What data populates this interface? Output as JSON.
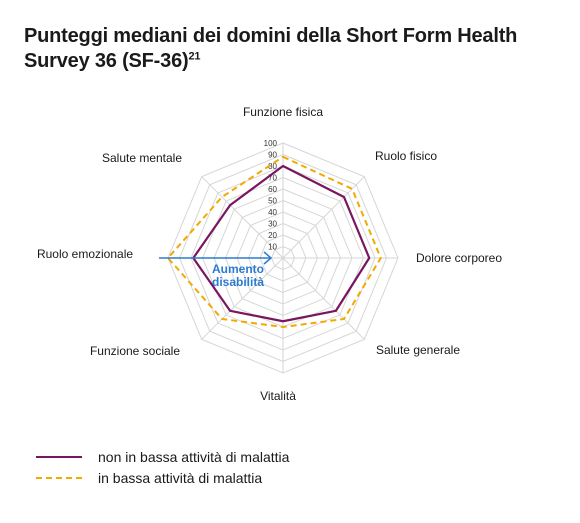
{
  "title": {
    "text": "Punteggi mediani dei domini della Short Form Health Survey 36 (SF-36)",
    "superscript": "21"
  },
  "chart_data": {
    "type": "radar",
    "axes": [
      "Funzione fisica",
      "Ruolo fisico",
      "Dolore corporeo",
      "Salute generale",
      "Vitalità",
      "Funzione sociale",
      "Ruolo emozionale",
      "Salute mentale"
    ],
    "scale": {
      "min": 0,
      "max": 100,
      "ticks": [
        "10",
        "20",
        "30",
        "40",
        "50",
        "60",
        "70",
        "80",
        "90",
        "100"
      ]
    },
    "annotation": {
      "line1": "Aumento",
      "line2": "disabilità",
      "color": "#2b7bd1"
    },
    "series": [
      {
        "name": "non in bassa attività di malattia",
        "values": [
          80,
          75,
          75,
          65,
          55,
          65,
          78,
          65
        ],
        "color": "#7a1560",
        "style": "solid"
      },
      {
        "name": "in bassa attività di malattia",
        "values": [
          88,
          85,
          85,
          75,
          60,
          75,
          100,
          75
        ],
        "color": "#f2a900",
        "style": "dashed"
      }
    ],
    "grid": true
  }
}
